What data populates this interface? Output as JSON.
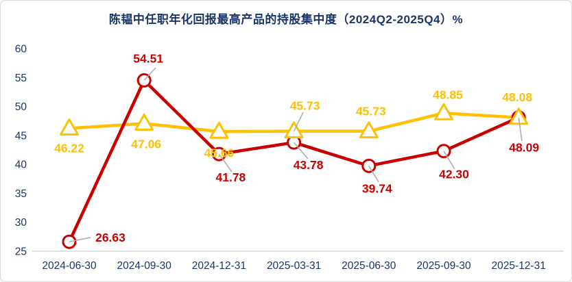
{
  "header": {
    "title": "陈韫中任职年化回报最高产品的持股集中度（2024Q2-2025Q4）%",
    "title_color": "#1b3467"
  },
  "chart_data": {
    "type": "line",
    "title": "陈韫中任职年化回报最高产品的持股集中度（2024Q2-2025Q4）%",
    "categories": [
      "2024-06-30",
      "2024-09-30",
      "2024-12-31",
      "2025-03-31",
      "2025-06-30",
      "2025-09-30",
      "2025-12-31"
    ],
    "series": [
      {
        "name": "series1",
        "color": "#c90000",
        "marker": "circle",
        "values": [
          26.63,
          54.51,
          41.78,
          43.78,
          39.74,
          42.3,
          48.09
        ],
        "labels": [
          "26.63",
          "54.51",
          "41.78",
          "43.78",
          "39.74",
          "42.30",
          "48.09"
        ]
      },
      {
        "name": "series2",
        "color": "#ffc000",
        "marker": "triangle",
        "values": [
          46.22,
          47.06,
          45.66,
          45.73,
          45.73,
          48.85,
          48.08
        ],
        "labels": [
          "46.22",
          "47.06",
          "45.66",
          "45.73",
          "45.73",
          "48.85",
          "48.08"
        ]
      }
    ],
    "ylim": [
      25,
      60
    ],
    "yticks": [
      25,
      30,
      35,
      40,
      45,
      50,
      55,
      60
    ],
    "xlabel": "",
    "ylabel": "",
    "grid": false,
    "legend": "none",
    "axis_text_color": "#1b3467",
    "axis_line_color": "#d9d9d9",
    "leader_line_color": "#aeaeae",
    "marker_fill": "#ffffff"
  }
}
